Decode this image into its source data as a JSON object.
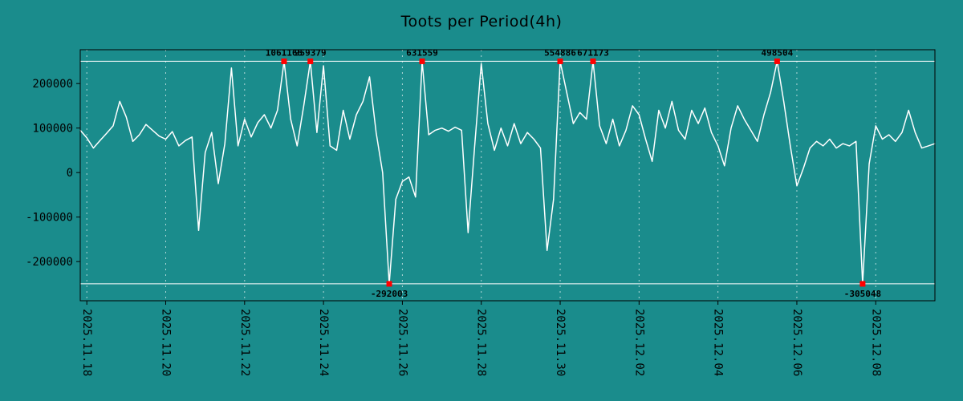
{
  "colors": {
    "background": "#1a8c8c",
    "line": "#ffffff",
    "grid": "#ffffff",
    "clip_line": "#ffffff",
    "marker": "#ff0000",
    "text": "#000000",
    "border": "#000000"
  },
  "chart_data": {
    "type": "line",
    "title": "Toots per Period(4h)",
    "xlabel": "",
    "ylabel": "",
    "ylim": [
      -288000,
      276000
    ],
    "clip": 250000,
    "grid": "vertical-dashed",
    "legend": "none",
    "y_ticks": [
      {
        "label": "200000",
        "value": 200000
      },
      {
        "label": "100000",
        "value": 100000
      },
      {
        "label": "0",
        "value": 0
      },
      {
        "label": "-100000",
        "value": -100000
      },
      {
        "label": "-200000",
        "value": -200000
      }
    ],
    "x_ticks": [
      {
        "label": "2025.11.18",
        "index": 1
      },
      {
        "label": "2025.11.20",
        "index": 13
      },
      {
        "label": "2025.11.22",
        "index": 25
      },
      {
        "label": "2025.11.24",
        "index": 37
      },
      {
        "label": "2025.11.26",
        "index": 49
      },
      {
        "label": "2025.11.28",
        "index": 61
      },
      {
        "label": "2025.11.30",
        "index": 73
      },
      {
        "label": "2025.12.02",
        "index": 85
      },
      {
        "label": "2025.12.04",
        "index": 97
      },
      {
        "label": "2025.12.06",
        "index": 109
      },
      {
        "label": "2025.12.08",
        "index": 121
      }
    ],
    "period_hours": 4,
    "values": [
      95000,
      78000,
      55000,
      72000,
      88000,
      105000,
      160000,
      125000,
      70000,
      85000,
      108000,
      95000,
      82000,
      75000,
      92000,
      60000,
      72000,
      80000,
      -130000,
      45000,
      90000,
      -25000,
      65000,
      235000,
      60000,
      120000,
      80000,
      112000,
      130000,
      100000,
      140000,
      1061165,
      120000,
      60000,
      150000,
      959379,
      90000,
      240000,
      60000,
      50000,
      140000,
      75000,
      130000,
      160000,
      215000,
      90000,
      0,
      -292003,
      -60000,
      -20000,
      -10000,
      -55000,
      631559,
      85000,
      95000,
      100000,
      93000,
      102000,
      95000,
      -135000,
      60000,
      245000,
      110000,
      50000,
      100000,
      60000,
      110000,
      65000,
      90000,
      75000,
      55000,
      -175000,
      -60000,
      554886,
      180000,
      110000,
      135000,
      120000,
      671173,
      105000,
      65000,
      120000,
      60000,
      95000,
      150000,
      130000,
      75000,
      25000,
      140000,
      100000,
      160000,
      95000,
      75000,
      140000,
      110000,
      145000,
      90000,
      60000,
      15000,
      100000,
      150000,
      120000,
      95000,
      70000,
      130000,
      180000,
      498504,
      160000,
      60000,
      -30000,
      10000,
      55000,
      70000,
      60000,
      75000,
      55000,
      65000,
      60000,
      70000,
      -305048,
      20000,
      105000,
      75000,
      85000,
      70000,
      90000,
      140000,
      90000,
      55000,
      60000,
      65000
    ],
    "annotations": [
      {
        "index": 31,
        "label": "1061165",
        "side": "top"
      },
      {
        "index": 35,
        "label": "959379",
        "side": "top"
      },
      {
        "index": 52,
        "label": "631559",
        "side": "top"
      },
      {
        "index": 73,
        "label": "554886",
        "side": "top"
      },
      {
        "index": 78,
        "label": "671173",
        "side": "top"
      },
      {
        "index": 106,
        "label": "498504",
        "side": "top"
      },
      {
        "index": 47,
        "label": "-292003",
        "side": "bottom"
      },
      {
        "index": 119,
        "label": "-305048",
        "side": "bottom"
      }
    ]
  }
}
